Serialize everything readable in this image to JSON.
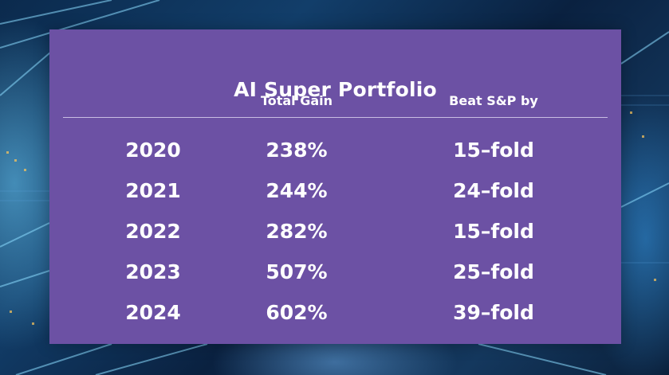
{
  "title": "AI Super Portfolio",
  "headers": {
    "gain": "Total Gain",
    "beat": "Beat S&P by"
  },
  "rows": [
    {
      "year": "2020",
      "gain": "238%",
      "beat": "15–fold"
    },
    {
      "year": "2021",
      "gain": "244%",
      "beat": "24–fold"
    },
    {
      "year": "2022",
      "gain": "282%",
      "beat": "15–fold"
    },
    {
      "year": "2023",
      "gain": "507%",
      "beat": "25–fold"
    },
    {
      "year": "2024",
      "gain": "602%",
      "beat": "39–fold"
    }
  ],
  "colors": {
    "panel": "#6c51a4",
    "text": "#ffffff",
    "divider": "#c9bde3",
    "background": "#0b2a4d"
  }
}
